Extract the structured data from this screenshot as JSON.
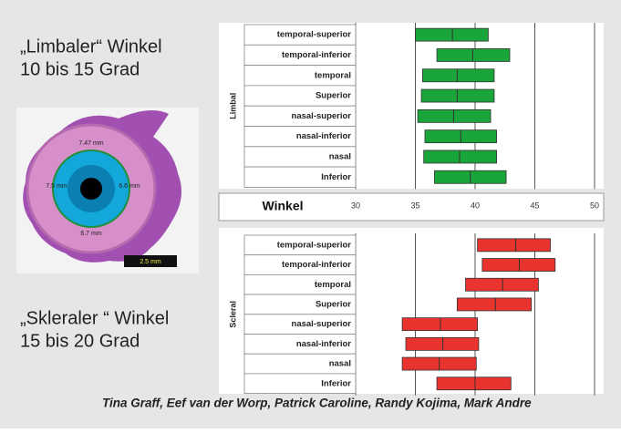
{
  "slide": {
    "limbal_title": "„Limbaler“ Winkel",
    "limbal_range": "10 bis 15 Grad",
    "scleral_title": "„Skleraler “ Winkel",
    "scleral_range": "15 bis 20 Grad",
    "authors": "Tina Graff, Eef van der Worp, Patrick Caroline, Randy Kojima, Mark Andre",
    "eye_labels": [
      "7.47 mm",
      "7.5 mm",
      "6.6 mm",
      "6.7 mm"
    ],
    "scale_label": "2.5 mm"
  },
  "chart_data": [
    {
      "type": "range-bar",
      "ylabel": "Limbal",
      "xlabel": "Winkel",
      "color": "#1aa53a",
      "categories": [
        "temporal-superior",
        "temporal-inferior",
        "temporal",
        "Superior",
        "nasal-superior",
        "nasal-inferior",
        "nasal",
        "Inferior"
      ],
      "low": [
        35.0,
        36.8,
        35.6,
        35.5,
        35.2,
        35.8,
        35.7,
        36.6
      ],
      "median": [
        38.1,
        39.8,
        38.5,
        38.5,
        38.2,
        38.8,
        38.7,
        39.6
      ],
      "high": [
        41.1,
        42.9,
        41.6,
        41.6,
        41.3,
        41.8,
        41.8,
        42.6
      ],
      "xlim": [
        30,
        50
      ],
      "xticks": [
        30,
        35,
        40,
        45,
        50
      ]
    },
    {
      "type": "range-bar",
      "ylabel": "Scleral",
      "color": "#e8332f",
      "categories": [
        "temporal-superior",
        "temporal-inferior",
        "temporal",
        "Superior",
        "nasal-superior",
        "nasal-inferior",
        "nasal",
        "Inferior"
      ],
      "low": [
        40.2,
        40.6,
        39.2,
        38.5,
        33.9,
        34.2,
        33.9,
        36.8
      ],
      "median": [
        43.4,
        43.7,
        42.3,
        41.7,
        37.1,
        37.3,
        37.0,
        40.0
      ],
      "high": [
        46.3,
        46.7,
        45.3,
        44.7,
        40.2,
        40.3,
        40.1,
        43.0
      ],
      "xlim": [
        30,
        50
      ],
      "xticks": [
        30,
        35,
        40,
        45,
        50
      ]
    }
  ]
}
